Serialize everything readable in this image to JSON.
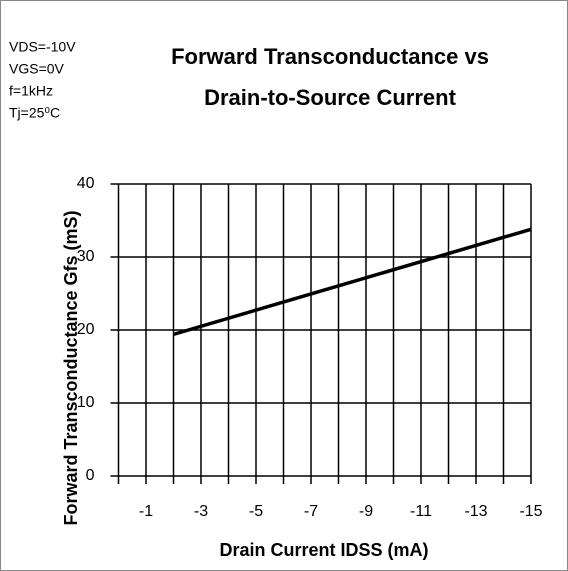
{
  "chart_data": {
    "type": "line",
    "title": [
      "Forward Transconductance vs",
      "Drain-to-Source Current"
    ],
    "xlabel": "Drain Current  IDSS  (mA)",
    "ylabel": "Forward Transconductance  Gfs  (mS)",
    "annotations": [
      "VDS=-10V",
      "VGS=0V",
      "f=1kHz",
      "Tj=25⁰C"
    ],
    "x": [
      -2,
      -15
    ],
    "series": [
      {
        "color": "#000000",
        "values": [
          19.4,
          33.8
        ]
      }
    ],
    "xlim": [
      0,
      -15
    ],
    "xticks": [
      -1,
      -3,
      -5,
      -7,
      -9,
      -11,
      -13,
      -15
    ],
    "xminor_ticks": [
      0,
      -2,
      -4,
      -6,
      -8,
      -10,
      -12,
      -14
    ],
    "ylim": [
      0,
      40
    ],
    "yticks": [
      0,
      10,
      20,
      30,
      40
    ],
    "grid": true
  }
}
